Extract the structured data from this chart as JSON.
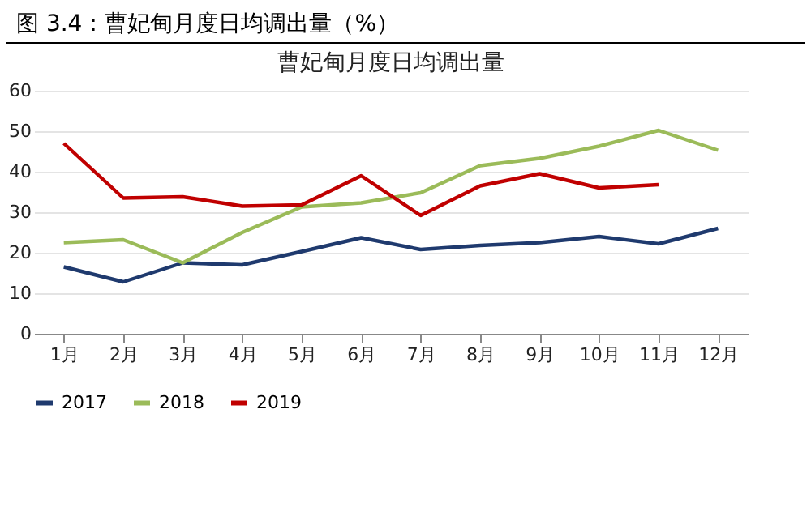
{
  "chart_data": {
    "type": "line",
    "title": "图 3.4：曹妃甸月度日均调出量（%）",
    "subtitle": "曹妃甸月度日均调出量",
    "categories": [
      "1月",
      "2月",
      "3月",
      "4月",
      "5月",
      "6月",
      "7月",
      "8月",
      "9月",
      "10月",
      "11月",
      "12月"
    ],
    "series": [
      {
        "name": "2017",
        "color": "#1f3a6e",
        "values": [
          16.5,
          12.8,
          17.5,
          17,
          20.3,
          23.7,
          20.8,
          21.8,
          22.5,
          24,
          22.2,
          26
        ]
      },
      {
        "name": "2018",
        "color": "#9bbb59",
        "values": [
          22.5,
          23.2,
          17.5,
          25,
          31.3,
          32.3,
          34.8,
          41.5,
          43.3,
          46.3,
          50.2,
          45.3
        ]
      },
      {
        "name": "2019",
        "color": "#c00000",
        "values": [
          47,
          33.5,
          33.8,
          31.5,
          31.8,
          39,
          29.2,
          36.5,
          39.5,
          36,
          36.8,
          null
        ]
      }
    ],
    "ylim": [
      0,
      60
    ],
    "yticks": [
      0,
      10,
      20,
      30,
      40,
      50,
      60
    ],
    "grid": "y",
    "legend": "bottom",
    "marker": "none",
    "line_style": "solid"
  }
}
